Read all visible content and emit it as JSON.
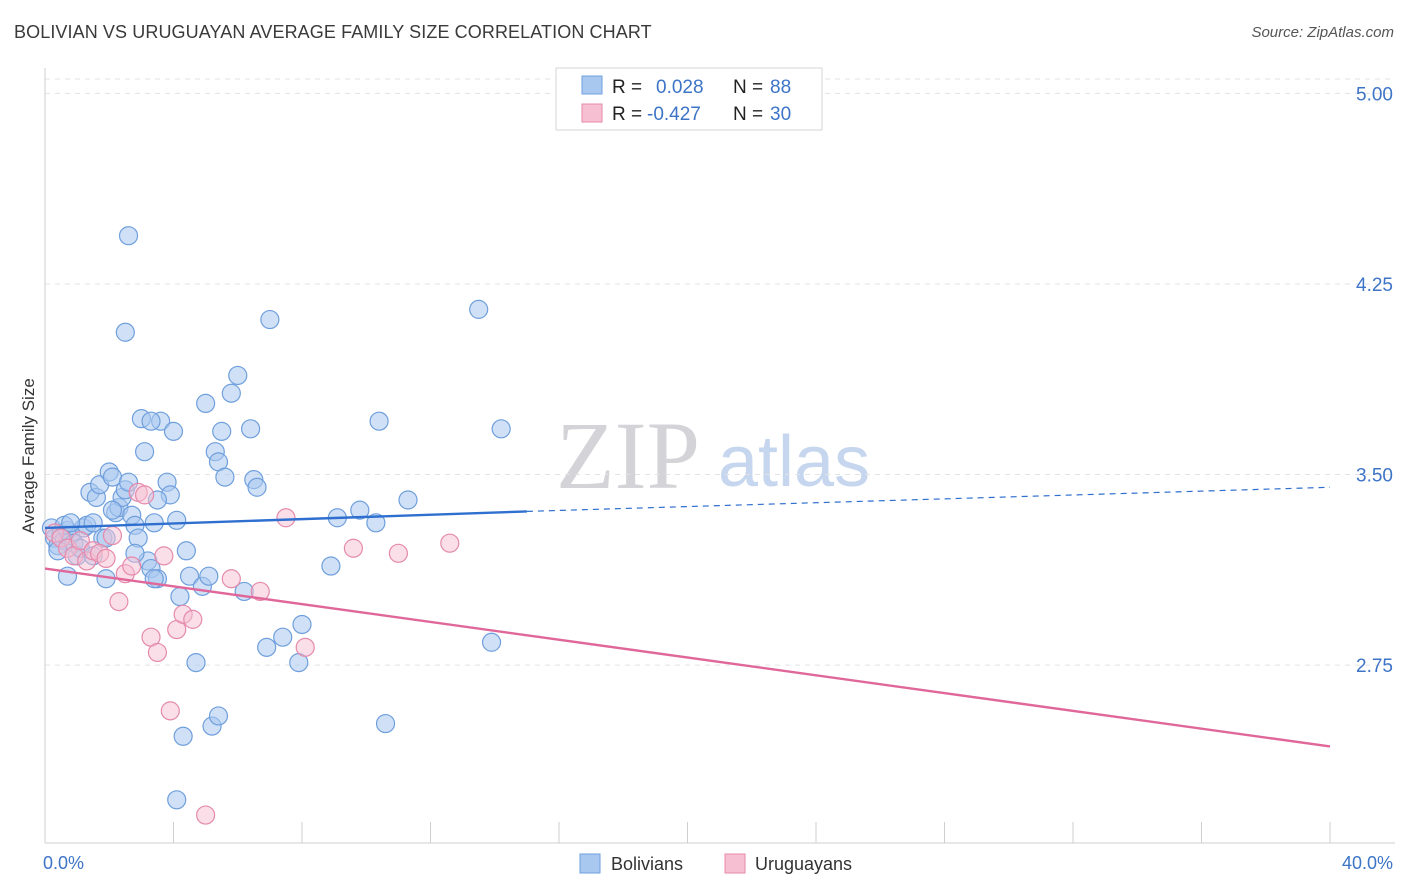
{
  "title": "BOLIVIAN VS URUGUAYAN AVERAGE FAMILY SIZE CORRELATION CHART",
  "source": "Source: ZipAtlas.com",
  "watermark": {
    "zip": "ZIP",
    "atlas": "atlas"
  },
  "colors": {
    "blue_fill": "#a9c8f0",
    "blue_stroke": "#6f9fdc",
    "blue_line": "#2f6fcf",
    "pink_fill": "#f6bfd2",
    "pink_stroke": "#e58aac",
    "pink_line": "#e0679a",
    "grid": "#e3e3e3",
    "axis_text": "#3d74c7"
  },
  "legend": {
    "series": [
      {
        "r_label": "R =",
        "r_value": "0.028",
        "n_label": "N =",
        "n_value": "88"
      },
      {
        "r_label": "R =",
        "r_value": "-0.427",
        "n_label": "N =",
        "n_value": "30"
      }
    ]
  },
  "chart_data": {
    "type": "scatter",
    "title": "BOLIVIAN VS URUGUAYAN AVERAGE FAMILY SIZE CORRELATION CHART",
    "xlabel": "",
    "ylabel": "Average Family Size",
    "xlim": [
      0,
      40
    ],
    "ylim": [
      2.05,
      5.1
    ],
    "x_tick_labels": [
      "0.0%",
      "40.0%"
    ],
    "y_ticks": [
      2.75,
      3.5,
      4.25,
      5.0
    ],
    "y_tick_labels": [
      "2.75",
      "3.50",
      "4.25",
      "5.00"
    ],
    "series": [
      {
        "name": "Bolivians",
        "r": 0.028,
        "n": 88,
        "trend": {
          "x0": 0,
          "y0": 3.29,
          "x1": 15.0,
          "y1": 3.355,
          "dash_x1": 40.0,
          "dash_y1": 3.45
        },
        "points": [
          [
            0.2,
            3.29
          ],
          [
            0.3,
            3.25
          ],
          [
            0.4,
            3.22
          ],
          [
            0.5,
            3.27
          ],
          [
            0.6,
            3.24
          ],
          [
            0.7,
            3.28
          ],
          [
            0.8,
            3.26
          ],
          [
            0.9,
            3.23
          ],
          [
            0.4,
            3.2
          ],
          [
            0.6,
            3.3
          ],
          [
            1.0,
            3.18
          ],
          [
            1.1,
            3.21
          ],
          [
            1.2,
            3.29
          ],
          [
            1.3,
            3.3
          ],
          [
            0.8,
            3.31
          ],
          [
            1.4,
            3.43
          ],
          [
            1.5,
            3.31
          ],
          [
            1.6,
            3.41
          ],
          [
            1.7,
            3.46
          ],
          [
            1.8,
            3.25
          ],
          [
            1.9,
            3.25
          ],
          [
            2.0,
            3.51
          ],
          [
            2.1,
            3.49
          ],
          [
            2.2,
            3.35
          ],
          [
            2.3,
            3.37
          ],
          [
            2.4,
            3.41
          ],
          [
            2.5,
            3.44
          ],
          [
            2.6,
            3.47
          ],
          [
            2.7,
            3.34
          ],
          [
            2.8,
            3.3
          ],
          [
            2.9,
            3.25
          ],
          [
            3.0,
            3.72
          ],
          [
            3.1,
            3.59
          ],
          [
            3.2,
            3.16
          ],
          [
            3.3,
            3.13
          ],
          [
            3.4,
            3.31
          ],
          [
            3.5,
            3.09
          ],
          [
            3.6,
            3.71
          ],
          [
            3.8,
            3.47
          ],
          [
            3.9,
            3.42
          ],
          [
            4.0,
            3.67
          ],
          [
            4.1,
            3.32
          ],
          [
            4.2,
            3.02
          ],
          [
            4.4,
            3.2
          ],
          [
            4.5,
            3.1
          ],
          [
            4.7,
            2.76
          ],
          [
            4.9,
            3.06
          ],
          [
            5.0,
            3.78
          ],
          [
            5.1,
            3.1
          ],
          [
            5.3,
            3.59
          ],
          [
            5.4,
            3.55
          ],
          [
            5.5,
            3.67
          ],
          [
            5.6,
            3.49
          ],
          [
            5.8,
            3.82
          ],
          [
            6.0,
            3.89
          ],
          [
            6.2,
            3.04
          ],
          [
            6.4,
            3.68
          ],
          [
            6.5,
            3.48
          ],
          [
            6.6,
            3.45
          ],
          [
            6.9,
            2.82
          ],
          [
            7.0,
            4.11
          ],
          [
            7.4,
            2.86
          ],
          [
            7.9,
            2.76
          ],
          [
            8.0,
            2.91
          ],
          [
            8.9,
            3.14
          ],
          [
            9.1,
            3.33
          ],
          [
            9.8,
            3.36
          ],
          [
            10.3,
            3.31
          ],
          [
            10.4,
            3.71
          ],
          [
            10.6,
            2.52
          ],
          [
            11.3,
            3.4
          ],
          [
            13.5,
            4.15
          ],
          [
            13.9,
            2.84
          ],
          [
            14.2,
            3.68
          ],
          [
            2.6,
            4.44
          ],
          [
            2.5,
            4.06
          ],
          [
            3.4,
            3.09
          ],
          [
            3.5,
            3.4
          ],
          [
            3.3,
            3.71
          ],
          [
            2.1,
            3.36
          ],
          [
            1.9,
            3.09
          ],
          [
            1.5,
            3.18
          ],
          [
            2.8,
            3.19
          ],
          [
            4.3,
            2.47
          ],
          [
            5.2,
            2.51
          ],
          [
            5.4,
            2.55
          ],
          [
            4.1,
            2.22
          ],
          [
            0.7,
            3.1
          ]
        ]
      },
      {
        "name": "Uruguayans",
        "r": -0.427,
        "n": 30,
        "trend": {
          "x0": 0,
          "y0": 3.13,
          "x1": 40.0,
          "y1": 2.43
        },
        "points": [
          [
            0.3,
            3.27
          ],
          [
            0.5,
            3.25
          ],
          [
            0.7,
            3.21
          ],
          [
            0.9,
            3.18
          ],
          [
            1.1,
            3.24
          ],
          [
            1.3,
            3.16
          ],
          [
            1.5,
            3.2
          ],
          [
            1.7,
            3.19
          ],
          [
            1.9,
            3.17
          ],
          [
            2.1,
            3.26
          ],
          [
            2.3,
            3.0
          ],
          [
            2.5,
            3.11
          ],
          [
            2.7,
            3.14
          ],
          [
            2.9,
            3.43
          ],
          [
            3.1,
            3.42
          ],
          [
            3.3,
            2.86
          ],
          [
            3.5,
            2.8
          ],
          [
            3.7,
            3.18
          ],
          [
            3.9,
            2.57
          ],
          [
            4.1,
            2.89
          ],
          [
            4.3,
            2.95
          ],
          [
            4.6,
            2.93
          ],
          [
            5.0,
            2.16
          ],
          [
            5.8,
            3.09
          ],
          [
            6.7,
            3.04
          ],
          [
            7.5,
            3.33
          ],
          [
            8.1,
            2.82
          ],
          [
            9.6,
            3.21
          ],
          [
            11.0,
            3.19
          ],
          [
            12.6,
            3.23
          ]
        ]
      }
    ],
    "legend_labels": [
      "Bolivians",
      "Uruguayans"
    ]
  }
}
